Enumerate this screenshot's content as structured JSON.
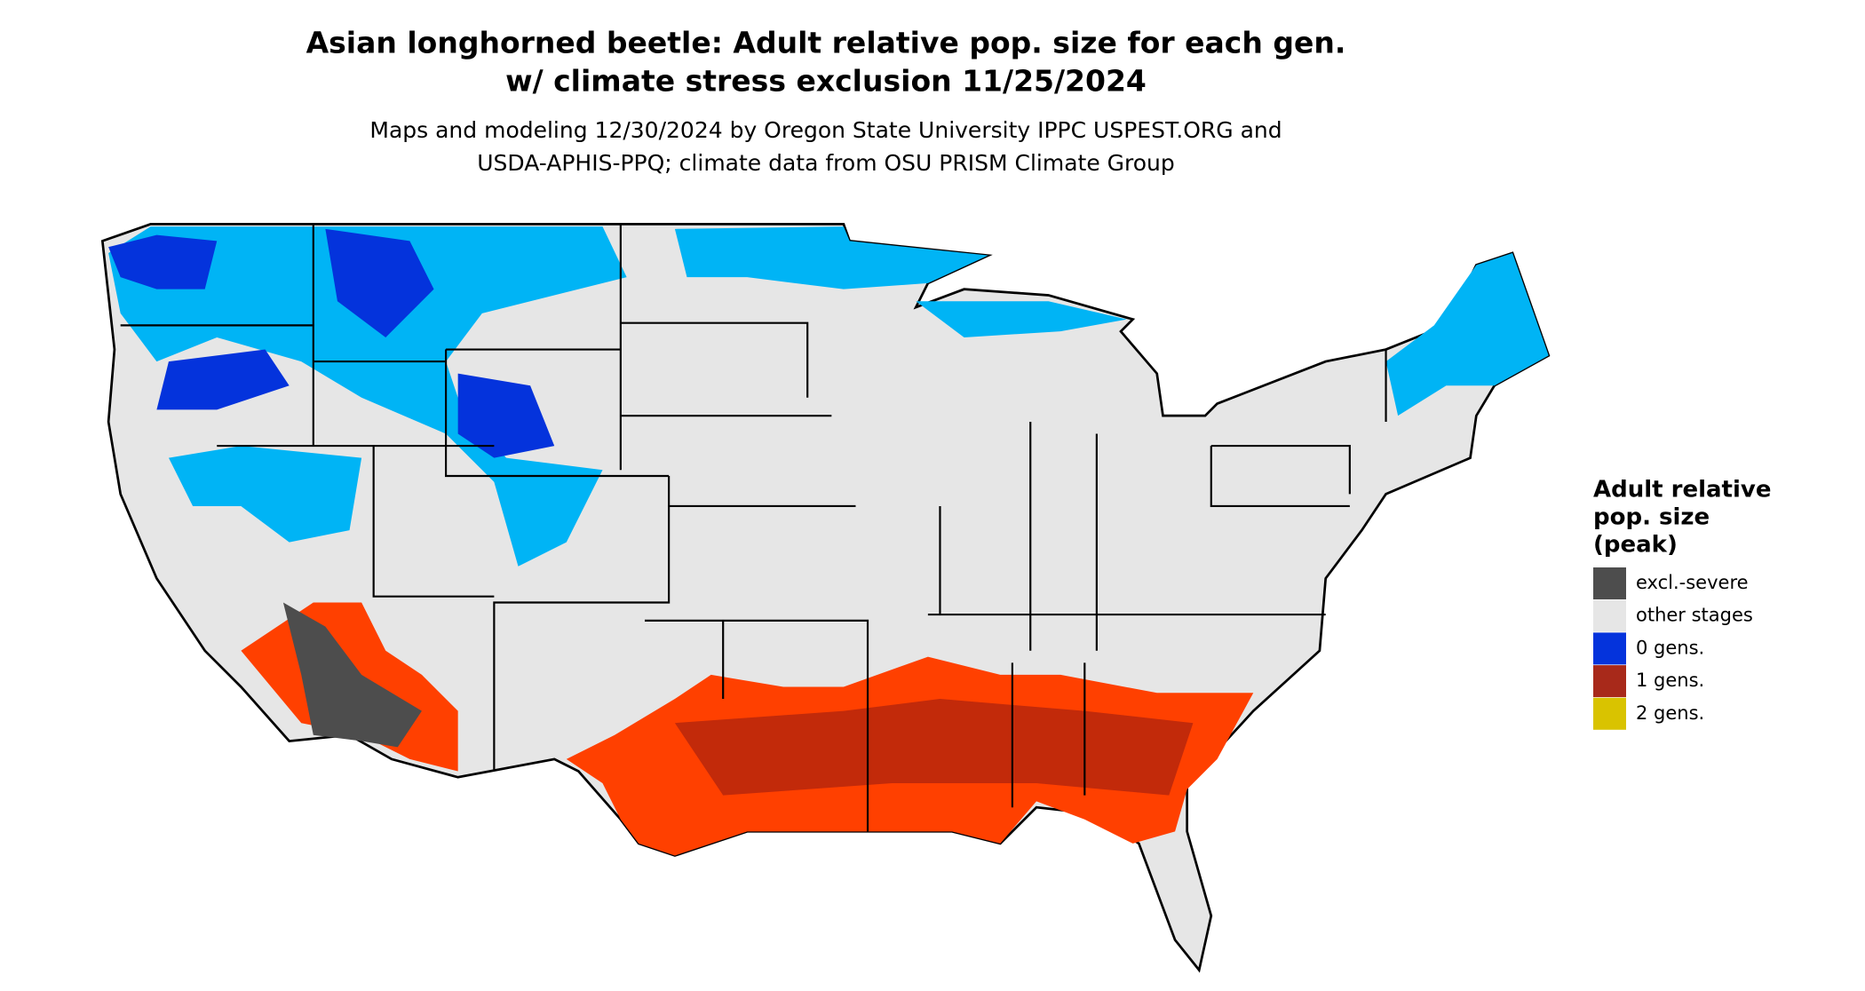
{
  "header": {
    "title": [
      "Asian longhorned beetle: Adult relative pop. size for each gen.",
      "w/ climate stress exclusion 11/25/2024"
    ],
    "subtitle": [
      "Maps and modeling 12/30/2024 by Oregon State University IPPC USPEST.ORG and",
      "USDA-APHIS-PPQ; climate data from OSU PRISM Climate Group"
    ]
  },
  "legend": {
    "title": [
      "Adult relative",
      "pop. size",
      "(peak)"
    ],
    "items": [
      {
        "label": "excl.-severe",
        "color": "#4d4d4d"
      },
      {
        "label": "other stages",
        "color": "#e6e6e6"
      },
      {
        "label": "0 gens.",
        "color": "#0433dc"
      },
      {
        "label": "1 gens.",
        "color": "#a8291a"
      },
      {
        "label": "2 gens.",
        "color": "#d9c300"
      }
    ]
  }
}
